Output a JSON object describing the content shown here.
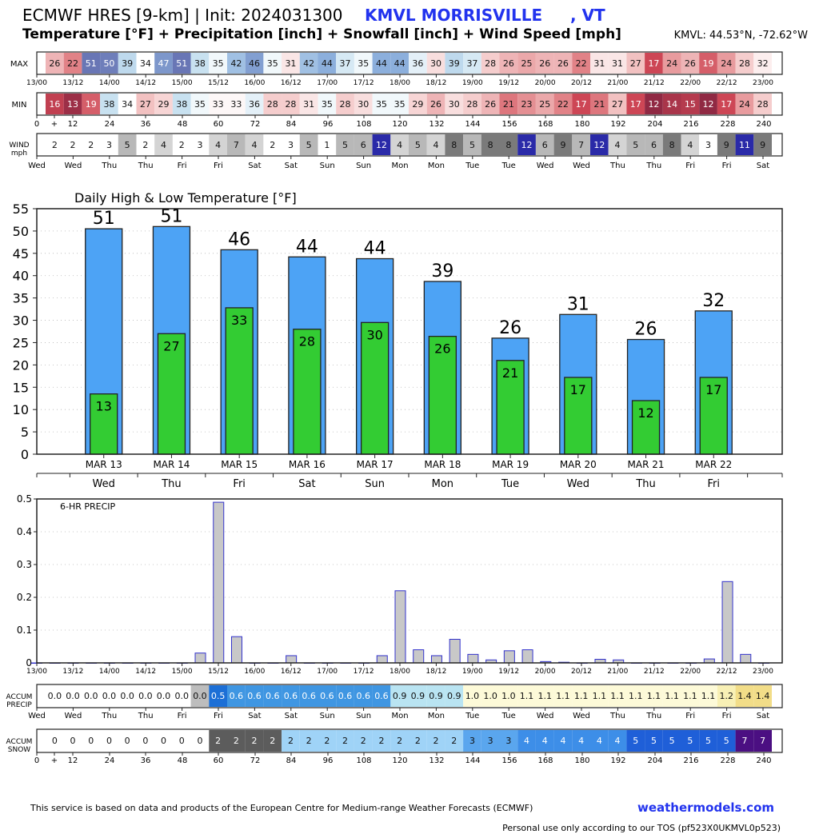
{
  "header": {
    "title": "ECMWF HRES [9-km] | Init: 2024031300",
    "station": "KMVL MORRISVILLE     , VT",
    "subtitle": "Temperature [°F] + Precipitation [inch] + Snowfall [inch] + Wind Speed [mph]",
    "coords": "KMVL: 44.53°N, -72.62°W",
    "accent_color": "#2233ee"
  },
  "strips": {
    "max": {
      "label": "MAX",
      "values": [
        26,
        22,
        51,
        50,
        39,
        34,
        47,
        51,
        38,
        35,
        42,
        46,
        35,
        31,
        42,
        44,
        37,
        35,
        44,
        44,
        36,
        30,
        39,
        37,
        28,
        26,
        25,
        26,
        26,
        22,
        31,
        31,
        27,
        17,
        24,
        26,
        19,
        24,
        28,
        32
      ],
      "axis_labels": [
        "13/00",
        "13/12",
        "14/00",
        "14/12",
        "15/00",
        "15/12",
        "16/00",
        "16/12",
        "17/00",
        "17/12",
        "18/00",
        "18/12",
        "19/00",
        "19/12",
        "20/00",
        "20/12",
        "21/00",
        "21/12",
        "22/00",
        "22/12",
        "23/00"
      ]
    },
    "min": {
      "label": "MIN",
      "values": [
        16,
        13,
        19,
        38,
        34,
        27,
        29,
        38,
        35,
        33,
        33,
        36,
        28,
        28,
        31,
        35,
        28,
        30,
        35,
        35,
        29,
        26,
        30,
        28,
        26,
        21,
        23,
        25,
        22,
        17,
        21,
        27,
        17,
        12,
        14,
        15,
        12,
        17,
        24,
        28
      ],
      "axis_labels": [
        "0",
        "+",
        "12",
        "24",
        "36",
        "48",
        "60",
        "72",
        "84",
        "96",
        "108",
        "120",
        "132",
        "144",
        "156",
        "168",
        "180",
        "192",
        "204",
        "216",
        "228",
        "240"
      ]
    },
    "wind": {
      "label": "WIND",
      "units": "mph",
      "values": [
        2,
        2,
        2,
        3,
        5,
        2,
        4,
        2,
        3,
        4,
        7,
        4,
        2,
        3,
        5,
        1,
        5,
        6,
        12,
        4,
        5,
        4,
        8,
        5,
        8,
        8,
        12,
        6,
        9,
        7,
        12,
        4,
        5,
        6,
        8,
        4,
        3,
        9,
        11,
        9
      ],
      "axis_labels": [
        "Wed",
        "Wed",
        "Thu",
        "Thu",
        "Fri",
        "Fri",
        "Sat",
        "Sat",
        "Sun",
        "Sun",
        "Mon",
        "Mon",
        "Tue",
        "Tue",
        "Wed",
        "Wed",
        "Thu",
        "Thu",
        "Fri",
        "Fri",
        "Sat"
      ]
    }
  },
  "chart_data": [
    {
      "type": "bar",
      "title": "Daily High & Low Temperature [°F]",
      "categories": [
        "MAR 13",
        "MAR 14",
        "MAR 15",
        "MAR 16",
        "MAR 17",
        "MAR 18",
        "MAR 19",
        "MAR 20",
        "MAR 21",
        "MAR 22"
      ],
      "weekdays": [
        "Wed",
        "Thu",
        "Fri",
        "Sat",
        "Sun",
        "Mon",
        "Tue",
        "Wed",
        "Thu",
        "Fri"
      ],
      "series": [
        {
          "values": [
            50.5,
            51,
            45.8,
            44.2,
            43.8,
            38.7,
            26,
            31.3,
            25.7,
            32.1
          ],
          "labels": [
            "51",
            "51",
            "46",
            "44",
            "44",
            "39",
            "26",
            "31",
            "26",
            "32"
          ],
          "color": "#4da3f5"
        },
        {
          "values": [
            13.5,
            27,
            32.8,
            28,
            29.5,
            26.4,
            21,
            17.2,
            12,
            17.2
          ],
          "labels": [
            "13",
            "27",
            "33",
            "28",
            "30",
            "26",
            "21",
            "17",
            "12",
            "17"
          ],
          "color": "#33cc33"
        }
      ],
      "ylim": [
        0,
        55
      ],
      "yticks": [
        0,
        5,
        10,
        15,
        20,
        25,
        30,
        35,
        40,
        45,
        50,
        55
      ],
      "grid": true
    },
    {
      "type": "bar",
      "title": "6-HR PRECIP",
      "x": [
        0,
        6,
        12,
        18,
        24,
        30,
        36,
        42,
        48,
        54,
        60,
        66,
        72,
        78,
        84,
        90,
        96,
        102,
        108,
        114,
        120,
        126,
        132,
        138,
        144,
        150,
        156,
        162,
        168,
        174,
        180,
        186,
        192,
        198,
        204,
        210,
        216,
        222,
        228,
        234,
        240
      ],
      "values": [
        0,
        0,
        0,
        0,
        0,
        0,
        0,
        0,
        0,
        0.03,
        0.49,
        0.08,
        0,
        0,
        0.022,
        0,
        0,
        0,
        0,
        0.022,
        0.22,
        0.04,
        0.022,
        0.072,
        0.026,
        0.009,
        0.037,
        0.04,
        0.004,
        0.002,
        0,
        0.011,
        0.009,
        0,
        0,
        0,
        0,
        0.012,
        0.248,
        0.026,
        0
      ],
      "ylim": [
        0,
        0.5
      ],
      "yticks": [
        "0",
        "0.1",
        "0.2",
        "0.3",
        "0.4",
        "0.5"
      ],
      "xtick_labels": [
        "13/00",
        "13/12",
        "14/00",
        "14/12",
        "15/00",
        "15/12",
        "16/00",
        "16/12",
        "17/00",
        "17/12",
        "18/00",
        "18/12",
        "19/00",
        "19/12",
        "20/00",
        "20/12",
        "21/00",
        "21/12",
        "22/00",
        "22/12",
        "23/00"
      ],
      "color": "#c8c8c8",
      "edge_color": "#3333cc",
      "grid": true
    }
  ],
  "accum_precip": {
    "label1": "ACCUM",
    "label2": "PRECIP",
    "values": [
      "0.0",
      "0.0",
      "0.0",
      "0.0",
      "0.0",
      "0.0",
      "0.0",
      "0.0",
      "0.0",
      "0.5",
      "0.6",
      "0.6",
      "0.6",
      "0.6",
      "0.6",
      "0.6",
      "0.6",
      "0.6",
      "0.6",
      "0.9",
      "0.9",
      "0.9",
      "0.9",
      "1.0",
      "1.0",
      "1.0",
      "1.1",
      "1.1",
      "1.1",
      "1.1",
      "1.1",
      "1.1",
      "1.1",
      "1.1",
      "1.1",
      "1.1",
      "1.1",
      "1.2",
      "1.4",
      "1.4"
    ],
    "axis_labels": [
      "Wed",
      "Wed",
      "Thu",
      "Thu",
      "Fri",
      "Fri",
      "Sat",
      "Sat",
      "Sun",
      "Sun",
      "Mon",
      "Mon",
      "Tue",
      "Tue",
      "Wed",
      "Wed",
      "Thu",
      "Thu",
      "Fri",
      "Fri",
      "Sat"
    ]
  },
  "accum_snow": {
    "label1": "ACCUM",
    "label2": "SNOW",
    "values": [
      0,
      0,
      0,
      0,
      0,
      0,
      0,
      0,
      0,
      2,
      2,
      2,
      2,
      2,
      2,
      2,
      2,
      2,
      2,
      2,
      2,
      2,
      2,
      3,
      3,
      3,
      4,
      4,
      4,
      4,
      4,
      4,
      5,
      5,
      5,
      5,
      5,
      5,
      7,
      7
    ],
    "axis_labels": [
      "0",
      "+",
      "12",
      "24",
      "36",
      "48",
      "60",
      "72",
      "84",
      "96",
      "108",
      "120",
      "132",
      "144",
      "156",
      "168",
      "180",
      "192",
      "204",
      "216",
      "228",
      "240"
    ]
  },
  "footer": {
    "disclaimer": "This service is based on data and products of the European Centre for Medium-range Weather Forecasts (ECMWF)",
    "brand": "weathermodels.com",
    "tos": "Personal use only according to our TOS (pf523X0UKMVL0p523)"
  }
}
